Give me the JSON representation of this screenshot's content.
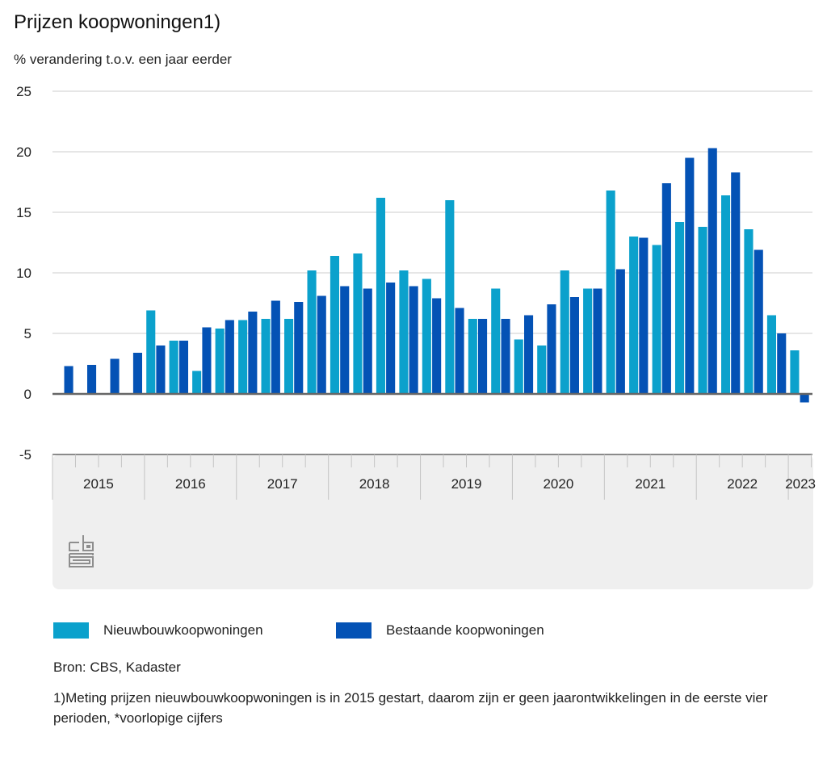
{
  "title": "Prijzen koopwoningen1)",
  "subtitle": "% verandering t.o.v. een jaar eerder",
  "colors": {
    "nieuwbouw": "#0ba1cc",
    "bestaande": "#0452b5",
    "axis_band": "#efefef",
    "grid": "#d8d8d8",
    "zero_line": "#666666"
  },
  "legend": [
    {
      "label": "Nieuwbouwkoopwoningen",
      "color": "#0ba1cc"
    },
    {
      "label": "Bestaande koopwoningen",
      "color": "#0452b5"
    }
  ],
  "source": "Bron: CBS, Kadaster",
  "footnote": "1)Meting prijzen nieuwbouwkoopwoningen is in 2015 gestart, daarom zijn er geen jaarontwikkelingen in de eerste vier perioden, *voorlopige cijfers",
  "logo": "cbs-logo",
  "chart_data": {
    "type": "bar",
    "title": "Prijzen koopwoningen1)",
    "subtitle": "% verandering t.o.v. een jaar eerder",
    "xlabel": "",
    "ylabel": "% verandering t.o.v. een jaar eerder",
    "ylim": [
      -5,
      25
    ],
    "yticks": [
      25,
      20,
      15,
      10,
      5,
      0,
      -5
    ],
    "grid": true,
    "legend_position": "bottom",
    "year_labels": [
      "2015",
      "2016",
      "2017",
      "2018",
      "2019",
      "2020",
      "2021",
      "2022",
      "2023"
    ],
    "categories": [
      "2015Q1",
      "2015Q2",
      "2015Q3",
      "2015Q4",
      "2016Q1",
      "2016Q2",
      "2016Q3",
      "2016Q4",
      "2017Q1",
      "2017Q2",
      "2017Q3",
      "2017Q4",
      "2018Q1",
      "2018Q2",
      "2018Q3",
      "2018Q4",
      "2019Q1",
      "2019Q2",
      "2019Q3",
      "2019Q4",
      "2020Q1",
      "2020Q2",
      "2020Q3",
      "2020Q4",
      "2021Q1",
      "2021Q2",
      "2021Q3",
      "2021Q4",
      "2022Q1",
      "2022Q2",
      "2022Q3",
      "2022Q4",
      "2023Q1"
    ],
    "series": [
      {
        "name": "Nieuwbouwkoopwoningen",
        "values": [
          null,
          null,
          null,
          null,
          6.9,
          4.4,
          1.9,
          5.4,
          6.1,
          6.2,
          6.2,
          10.2,
          11.4,
          11.6,
          16.2,
          10.2,
          9.5,
          16.0,
          6.2,
          8.7,
          4.5,
          4.0,
          10.2,
          8.7,
          16.8,
          13.0,
          12.3,
          14.2,
          13.8,
          16.4,
          13.6,
          6.5,
          3.6
        ]
      },
      {
        "name": "Bestaande koopwoningen",
        "values": [
          2.3,
          2.4,
          2.9,
          3.4,
          4.0,
          4.4,
          5.5,
          6.1,
          6.8,
          7.7,
          7.6,
          8.1,
          8.9,
          8.7,
          9.2,
          8.9,
          7.9,
          7.1,
          6.2,
          6.2,
          6.5,
          7.4,
          8.0,
          8.7,
          10.3,
          12.9,
          17.4,
          19.5,
          20.3,
          18.3,
          11.9,
          5.0,
          -0.7
        ]
      }
    ]
  }
}
